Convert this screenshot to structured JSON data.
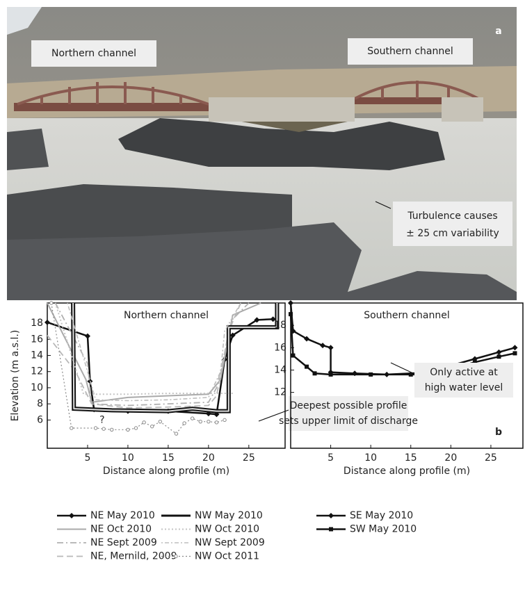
{
  "photo": {
    "labels": [
      "Northern channel",
      "Southern channel"
    ],
    "annotation": [
      "Turbulence causes",
      "± 25 cm variability"
    ],
    "panel_label": "a"
  },
  "chart_data": [
    {
      "type": "line",
      "title": "Northern channel",
      "ylabel": "Elevation (m a.s.l.)",
      "xlabel": "Distance along profile (m)",
      "xlim": [
        0,
        29.5
      ],
      "xticks": [
        5,
        10,
        15,
        20,
        25
      ],
      "ylim": [
        2.5,
        20.5
      ],
      "yticks": [
        6,
        8,
        10,
        12,
        14,
        16,
        18
      ],
      "annotation": {
        "lines": [
          "Deepest possible profile",
          "sets upper limit of discharge"
        ],
        "question": "?"
      },
      "series": [
        {
          "name": "NE May 2010",
          "color": "#111111",
          "dash": "solid",
          "marker": "diamond",
          "width": 2.5,
          "x": [
            0,
            5,
            5.3,
            5.8,
            10,
            15,
            20,
            21,
            22,
            23,
            26,
            28
          ],
          "values": [
            18.1,
            16.4,
            10.8,
            7.3,
            7.1,
            7.1,
            6.8,
            6.7,
            13.5,
            16.5,
            18.4,
            18.5
          ]
        },
        {
          "name": "NE Oct 2010",
          "color": "#aaaaaa",
          "dash": "solid",
          "marker": "none",
          "width": 2,
          "x": [
            0,
            4.8,
            5.5,
            10,
            15,
            20,
            21.5,
            23,
            26.5
          ],
          "values": [
            20.5,
            11,
            8.2,
            8.8,
            9,
            9.2,
            11,
            19,
            20.5
          ]
        },
        {
          "name": "NE Sept 2009",
          "color": "#b0b0b0",
          "dash": "dashdot",
          "marker": "none",
          "width": 1.8,
          "x": [
            1,
            5,
            5.5,
            10,
            15,
            20,
            21,
            23,
            25
          ],
          "values": [
            20.5,
            13,
            8,
            7.8,
            8,
            8.2,
            10,
            18.5,
            20.5
          ]
        },
        {
          "name": "NE, Mernild, 2009",
          "color": "#b8b8b8",
          "dash": "dashed",
          "marker": "none",
          "width": 1.8,
          "x": [
            0,
            3.5,
            5.5,
            10,
            15,
            20,
            21,
            22.5,
            24
          ],
          "values": [
            16.5,
            12,
            8,
            7.5,
            7.6,
            7.8,
            9,
            17,
            20.5
          ]
        },
        {
          "name": "NW May 2010",
          "color": "#111111",
          "dash": "solid",
          "marker": "none",
          "width": 3,
          "x": [
            3.2,
            3.3,
            8,
            15,
            18,
            21,
            22.5,
            22.5,
            28.5,
            28.5
          ],
          "values": [
            20.5,
            7.4,
            7.2,
            7.1,
            7.4,
            7.1,
            7.1,
            17.5,
            17.5,
            20.5
          ]
        },
        {
          "name": "NW Oct 2010",
          "color": "#c4c4c4",
          "dash": "dotted",
          "marker": "none",
          "width": 2,
          "x": [
            1,
            4.5,
            10,
            15,
            20,
            23
          ],
          "values": [
            20.5,
            9.2,
            9.2,
            9.3,
            9.3,
            9.3
          ]
        },
        {
          "name": "NW Sept 2009",
          "color": "#bdbdbd",
          "dash": "dotdash",
          "marker": "none",
          "width": 1.6,
          "x": [
            2.5,
            5,
            6,
            10,
            15,
            20,
            21.5,
            22,
            24
          ],
          "values": [
            20.5,
            12,
            8.5,
            8.4,
            8.5,
            8.8,
            12,
            17,
            20.5
          ]
        },
        {
          "name": "NW Oct 2011",
          "color": "#888888",
          "dash": "dotted",
          "marker": "circle",
          "width": 1.2,
          "x": [
            0.5,
            3,
            6,
            7,
            8,
            10,
            11,
            12,
            13,
            14,
            16,
            17,
            18,
            19,
            20,
            21,
            22
          ],
          "values": [
            20.5,
            5,
            5,
            4.9,
            4.8,
            4.8,
            5,
            5.7,
            5.2,
            5.8,
            4.3,
            5.6,
            6.2,
            5.8,
            5.8,
            5.7,
            6
          ]
        }
      ]
    },
    {
      "type": "line",
      "title": "Southern channel",
      "xlabel": "Distance along profile (m)",
      "panel_label": "b",
      "xlim": [
        0,
        29
      ],
      "xticks": [
        5,
        10,
        15,
        20,
        25
      ],
      "ylim": [
        7,
        20
      ],
      "yticks": [
        12,
        14,
        16,
        18
      ],
      "annotation": {
        "lines": [
          "Only active at",
          "high water level"
        ]
      },
      "series": [
        {
          "name": "SE May 2010",
          "color": "#111111",
          "dash": "solid",
          "marker": "diamond",
          "width": 2.5,
          "x": [
            0,
            0.3,
            2,
            4,
            5,
            5,
            8,
            12,
            18,
            20,
            23,
            26,
            28
          ],
          "values": [
            20,
            17.5,
            16.8,
            16.2,
            16,
            13.8,
            13.7,
            13.6,
            13.8,
            14.4,
            15,
            15.6,
            16
          ]
        },
        {
          "name": "SW May 2010",
          "color": "#111111",
          "dash": "solid",
          "marker": "square",
          "width": 2.5,
          "x": [
            0,
            0.3,
            2,
            3,
            5,
            10,
            15,
            18,
            20,
            23,
            26,
            28
          ],
          "values": [
            19,
            15.3,
            14.3,
            13.7,
            13.6,
            13.6,
            13.6,
            13.6,
            14.1,
            14.7,
            15.2,
            15.5
          ]
        }
      ]
    }
  ]
}
